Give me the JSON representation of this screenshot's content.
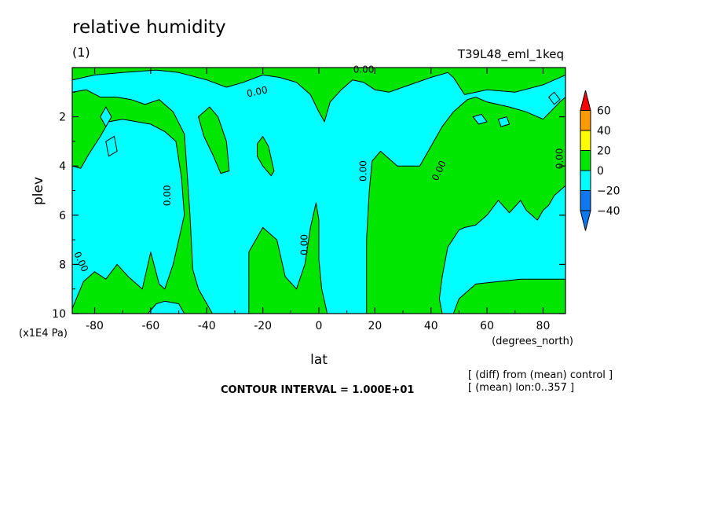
{
  "header": {
    "title": "relative humidity",
    "panel_label": "(1)",
    "run_label": "T39L48_eml_1keq"
  },
  "footer": {
    "contour_interval": "CONTOUR INTERVAL = 1.000E+01",
    "diff_note": "[ (diff) from (mean) control ]",
    "mean_note": "[ (mean) lon:0..357 ]"
  },
  "colors": {
    "below_minus40": "#0f78f0",
    "minus40_minus20": "#0f78f0",
    "minus20_0": "#00ffff",
    "0_20": "#00e600",
    "20_40": "#ffff00",
    "40_60": "#ff9a00",
    "above_60": "#ff0000"
  },
  "chart_data": {
    "type": "heatmap",
    "title": "relative humidity",
    "xlabel": "lat",
    "xunits": "(degrees_north)",
    "ylabel": "plev",
    "yunits": "(x1E4 Pa)",
    "xlim": [
      -88,
      88
    ],
    "ylim": [
      0,
      10
    ],
    "y_inverted": true,
    "xticks": [
      -80,
      -60,
      -40,
      -20,
      0,
      20,
      40,
      60,
      80
    ],
    "yticks": [
      2,
      4,
      6,
      8,
      10
    ],
    "contour_labels": [
      "0.00",
      "0.00",
      "0.00",
      "0.00",
      "0.00",
      "0.00",
      "0.00",
      "0.00"
    ],
    "colorbar": {
      "levels": [
        60,
        40,
        20,
        0,
        -20,
        -40
      ],
      "level_labels": [
        "60",
        "40",
        "20",
        "0",
        "−20",
        "−40"
      ],
      "colors": [
        "#ff0000",
        "#ff9a00",
        "#ffff00",
        "#00e600",
        "#00ffff",
        "#0f78f0",
        "#0f78f0"
      ]
    },
    "positive_regions": [
      {
        "name": "south-polar-block",
        "outline": [
          [
            -88,
            1.0
          ],
          [
            -83,
            0.9
          ],
          [
            -78,
            1.2
          ],
          [
            -72,
            1.2
          ],
          [
            -67,
            1.3
          ],
          [
            -62,
            1.5
          ],
          [
            -57,
            1.3
          ],
          [
            -52,
            1.8
          ],
          [
            -48,
            2.7
          ],
          [
            -47,
            4.3
          ],
          [
            -46,
            6.0
          ],
          [
            -45,
            8.2
          ],
          [
            -43,
            9.0
          ],
          [
            -40,
            9.6
          ],
          [
            -38,
            10
          ],
          [
            -48,
            10
          ],
          [
            -50,
            9.6
          ],
          [
            -55,
            9.5
          ],
          [
            -58,
            9.6
          ],
          [
            -61,
            10
          ],
          [
            -88,
            10
          ],
          [
            -88,
            9.8
          ],
          [
            -84,
            8.7
          ],
          [
            -80,
            8.3
          ],
          [
            -76,
            8.6
          ],
          [
            -72,
            8.0
          ],
          [
            -68,
            8.5
          ],
          [
            -63,
            9.0
          ],
          [
            -60,
            7.5
          ],
          [
            -57,
            8.8
          ],
          [
            -55,
            9.0
          ],
          [
            -52,
            8.0
          ],
          [
            -50,
            7.0
          ],
          [
            -48,
            6.0
          ],
          [
            -49,
            4.5
          ],
          [
            -51,
            3.0
          ],
          [
            -55,
            2.6
          ],
          [
            -60,
            2.3
          ],
          [
            -70,
            2.1
          ],
          [
            -75,
            2.2
          ],
          [
            -78,
            2.8
          ],
          [
            -82,
            3.5
          ],
          [
            -85,
            4.1
          ],
          [
            -88,
            4.0
          ]
        ]
      },
      {
        "name": "south-mid-block",
        "outline": [
          [
            -43,
            2.0
          ],
          [
            -39,
            1.6
          ],
          [
            -36,
            2.0
          ],
          [
            -33,
            3.0
          ],
          [
            -32,
            4.2
          ],
          [
            -35,
            4.3
          ],
          [
            -38,
            3.5
          ],
          [
            -41,
            2.8
          ]
        ]
      },
      {
        "name": "central-strip",
        "outline": [
          [
            -22,
            3.1
          ],
          [
            -20,
            2.8
          ],
          [
            -18,
            3.2
          ],
          [
            -16,
            4.2
          ],
          [
            -17,
            4.4
          ],
          [
            -20,
            4.0
          ],
          [
            -22,
            3.6
          ]
        ]
      },
      {
        "name": "top-band",
        "outline": [
          [
            -88,
            0
          ],
          [
            88,
            0
          ],
          [
            88,
            0.3
          ],
          [
            80,
            0.7
          ],
          [
            70,
            1.0
          ],
          [
            60,
            0.9
          ],
          [
            52,
            1.1
          ],
          [
            48,
            0.4
          ],
          [
            46,
            0.2
          ],
          [
            40,
            0.4
          ],
          [
            30,
            0.8
          ],
          [
            25,
            1.0
          ],
          [
            20,
            0.9
          ],
          [
            16,
            0.6
          ],
          [
            12,
            0.5
          ],
          [
            8,
            0.9
          ],
          [
            4,
            1.4
          ],
          [
            2,
            2.2
          ],
          [
            0,
            1.8
          ],
          [
            -3,
            1.1
          ],
          [
            -8,
            0.6
          ],
          [
            -14,
            0.4
          ],
          [
            -20,
            0.3
          ],
          [
            -27,
            0.6
          ],
          [
            -33,
            0.8
          ],
          [
            -40,
            0.5
          ],
          [
            -50,
            0.2
          ],
          [
            -58,
            0.1
          ],
          [
            -70,
            0.2
          ],
          [
            -80,
            0.3
          ],
          [
            -88,
            0.5
          ]
        ]
      },
      {
        "name": "equatorial-block",
        "outline": [
          [
            -25,
            10
          ],
          [
            -25,
            7.5
          ],
          [
            -20,
            6.5
          ],
          [
            -15,
            7.0
          ],
          [
            -12,
            8.5
          ],
          [
            -8,
            9.0
          ],
          [
            -5,
            8.0
          ],
          [
            -3,
            6.5
          ],
          [
            -1,
            5.5
          ],
          [
            0,
            6.2
          ],
          [
            0,
            7.8
          ],
          [
            1,
            9.0
          ],
          [
            3,
            10
          ]
        ]
      },
      {
        "name": "north-mid-block",
        "outline": [
          [
            17,
            10
          ],
          [
            17,
            7.0
          ],
          [
            18,
            5.0
          ],
          [
            19,
            3.8
          ],
          [
            22,
            3.4
          ],
          [
            28,
            4.0
          ],
          [
            36,
            4.0
          ],
          [
            40,
            3.2
          ],
          [
            44,
            2.4
          ],
          [
            48,
            1.8
          ],
          [
            53,
            1.3
          ],
          [
            56,
            1.2
          ],
          [
            60,
            1.4
          ],
          [
            68,
            1.6
          ],
          [
            74,
            1.8
          ],
          [
            80,
            2.1
          ],
          [
            86,
            1.4
          ],
          [
            88,
            1.2
          ],
          [
            88,
            4.8
          ],
          [
            84,
            5.2
          ],
          [
            82,
            5.6
          ],
          [
            80,
            5.8
          ],
          [
            78,
            6.2
          ],
          [
            74,
            5.8
          ],
          [
            72,
            5.4
          ],
          [
            68,
            5.9
          ],
          [
            64,
            5.4
          ],
          [
            60,
            6.0
          ],
          [
            56,
            6.4
          ],
          [
            52,
            6.5
          ],
          [
            50,
            6.6
          ],
          [
            46,
            7.3
          ],
          [
            44,
            8.5
          ],
          [
            43,
            9.4
          ],
          [
            44,
            10
          ]
        ]
      },
      {
        "name": "north-low-block",
        "outline": [
          [
            48,
            10
          ],
          [
            50,
            9.4
          ],
          [
            56,
            8.8
          ],
          [
            64,
            8.7
          ],
          [
            72,
            8.6
          ],
          [
            80,
            8.6
          ],
          [
            88,
            8.6
          ],
          [
            88,
            10
          ]
        ]
      }
    ],
    "negative_islands": [
      {
        "outline": [
          [
            -78,
            2.0
          ],
          [
            -76,
            1.6
          ],
          [
            -74,
            2.0
          ],
          [
            -76,
            2.4
          ]
        ]
      },
      {
        "outline": [
          [
            -76,
            3.0
          ],
          [
            -73,
            2.8
          ],
          [
            -72,
            3.4
          ],
          [
            -75,
            3.6
          ]
        ]
      },
      {
        "outline": [
          [
            55,
            2.0
          ],
          [
            58,
            1.9
          ],
          [
            60,
            2.2
          ],
          [
            57,
            2.3
          ]
        ]
      },
      {
        "outline": [
          [
            64,
            2.1
          ],
          [
            67,
            2.0
          ],
          [
            68,
            2.3
          ],
          [
            65,
            2.4
          ]
        ]
      },
      {
        "outline": [
          [
            82,
            1.2
          ],
          [
            84,
            1.0
          ],
          [
            86,
            1.3
          ],
          [
            84,
            1.5
          ]
        ]
      }
    ]
  }
}
